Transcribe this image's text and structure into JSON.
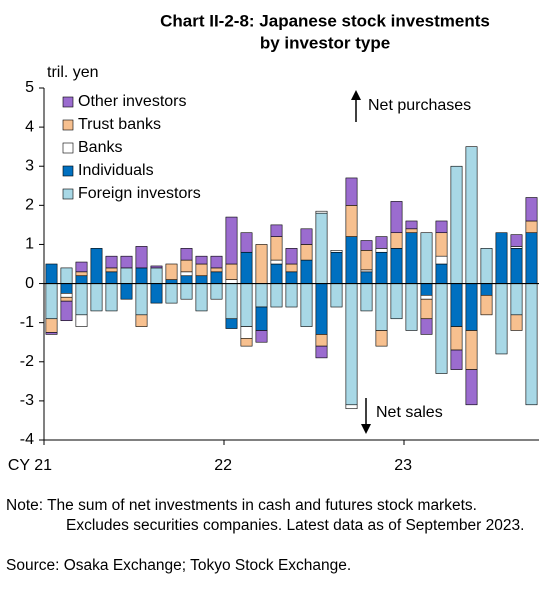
{
  "chart_data": {
    "type": "stacked_bar",
    "title": [
      "Chart II-2-8: Japanese stock investments",
      "by investor type"
    ],
    "y_label": "tril. yen",
    "annotations": [
      "Net purchases",
      "Net sales"
    ],
    "categories": [
      "CY 21",
      null,
      null,
      null,
      null,
      null,
      null,
      null,
      null,
      null,
      null,
      null,
      "22",
      null,
      null,
      null,
      null,
      null,
      null,
      null,
      null,
      null,
      null,
      null,
      "23",
      null,
      null,
      null,
      null,
      null,
      null,
      null,
      null
    ],
    "series": [
      {
        "name": "Foreign investors",
        "color": "#a8d8e6",
        "values": [
          -0.9,
          0.4,
          -0.8,
          -0.7,
          -0.7,
          0.4,
          -0.8,
          0.4,
          -0.5,
          -0.4,
          -0.7,
          -0.4,
          -0.9,
          -1.1,
          -0.6,
          -0.6,
          -0.6,
          -1.1,
          1.8,
          -0.6,
          -3.1,
          -0.7,
          -1.2,
          -0.9,
          -1.2,
          1.3,
          -2.3,
          3.0,
          3.5,
          0.9,
          -1.8,
          -0.8,
          -3.1
        ]
      },
      {
        "name": "Individuals",
        "color": "#0070c0",
        "values": [
          0.5,
          -0.25,
          0.2,
          0.9,
          0.3,
          -0.4,
          0.4,
          -0.5,
          0.1,
          0.2,
          0.2,
          0.3,
          -0.25,
          0.8,
          -0.6,
          0.5,
          0.3,
          0.6,
          -1.3,
          0.8,
          1.2,
          0.3,
          0.8,
          0.9,
          1.3,
          -0.3,
          0.5,
          -1.1,
          -1.2,
          -0.3,
          1.3,
          0.9,
          1.3
        ]
      },
      {
        "name": "Banks",
        "color": "#ffffff",
        "values": [
          0,
          -0.1,
          -0.3,
          0,
          0,
          0,
          0,
          0,
          0,
          0.1,
          0,
          0,
          0.1,
          -0.3,
          0,
          0.1,
          0,
          0,
          0.05,
          0.05,
          -0.1,
          0.05,
          0.1,
          0,
          0,
          -0.1,
          0.2,
          0,
          0,
          0,
          0,
          0.05,
          0
        ]
      },
      {
        "name": "Trust banks",
        "color": "#f7c08f",
        "values": [
          -0.35,
          -0.1,
          0.1,
          0,
          0.1,
          0,
          -0.3,
          0,
          0.4,
          0.3,
          0.3,
          0.1,
          0.4,
          -0.2,
          1.0,
          0.6,
          0.2,
          0.4,
          -0.3,
          0,
          0.8,
          0.5,
          -0.4,
          0.4,
          0.1,
          -0.5,
          0.6,
          -0.6,
          -1.0,
          -0.5,
          0,
          -0.4,
          0.3
        ]
      },
      {
        "name": "Other investors",
        "color": "#9b6ccf",
        "values": [
          -0.05,
          -0.5,
          0.25,
          0,
          0.3,
          0.3,
          0.55,
          0.05,
          0,
          0.3,
          0.2,
          0.3,
          1.2,
          0.5,
          -0.3,
          0.3,
          0.4,
          0.4,
          -0.3,
          0,
          0.7,
          0.25,
          0.3,
          0.8,
          0.2,
          -0.4,
          0.3,
          -0.5,
          -0.9,
          0,
          0,
          0.3,
          0.6
        ]
      }
    ],
    "ylim": [
      -4,
      5
    ],
    "yticks": [
      -4,
      -3,
      -2,
      -1,
      0,
      1,
      2,
      3,
      4,
      5
    ],
    "legend": "upper left",
    "note": "Note: The sum of net investments in cash and futures stock markets. Excludes securities companies. Latest data as of September 2023.",
    "source": "Source: Osaka Exchange; Tokyo Stock Exchange."
  }
}
